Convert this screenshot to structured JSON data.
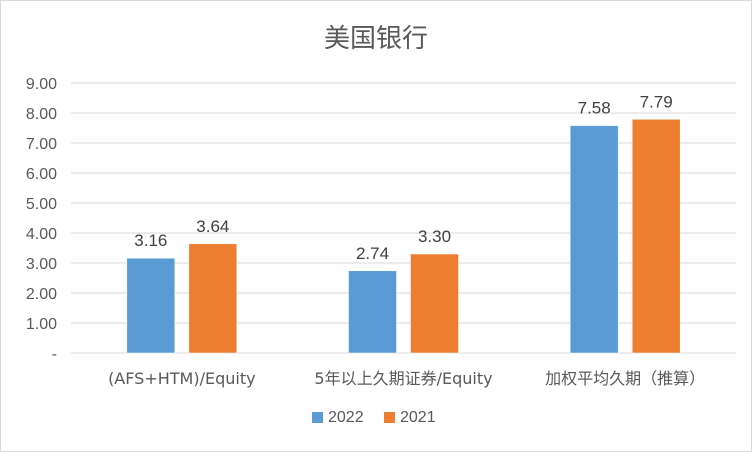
{
  "chart_data": {
    "type": "bar",
    "title": "美国银行",
    "categories": [
      "(AFS+HTM)/Equity",
      "5年以上久期证券/Equity",
      "加权平均久期（推算）"
    ],
    "series": [
      {
        "name": "2022",
        "color": "#5b9bd5",
        "values": [
          3.16,
          2.74,
          7.58
        ],
        "labels": [
          "3.16",
          "2.74",
          "7.58"
        ]
      },
      {
        "name": "2021",
        "color": "#ed7d31",
        "values": [
          3.64,
          3.3,
          7.79
        ],
        "labels": [
          "3.64",
          "3.30",
          "7.79"
        ]
      }
    ],
    "ylim": [
      0,
      9
    ],
    "yticks": [
      {
        "value": 0,
        "label": "-"
      },
      {
        "value": 1,
        "label": "1.00"
      },
      {
        "value": 2,
        "label": "2.00"
      },
      {
        "value": 3,
        "label": "3.00"
      },
      {
        "value": 4,
        "label": "4.00"
      },
      {
        "value": 5,
        "label": "5.00"
      },
      {
        "value": 6,
        "label": "6.00"
      },
      {
        "value": 7,
        "label": "7.00"
      },
      {
        "value": 8,
        "label": "8.00"
      },
      {
        "value": 9,
        "label": "9.00"
      }
    ],
    "grid": true,
    "legend_position": "bottom",
    "gridline_color": "#d9d9d9",
    "text_color": "#595959"
  }
}
